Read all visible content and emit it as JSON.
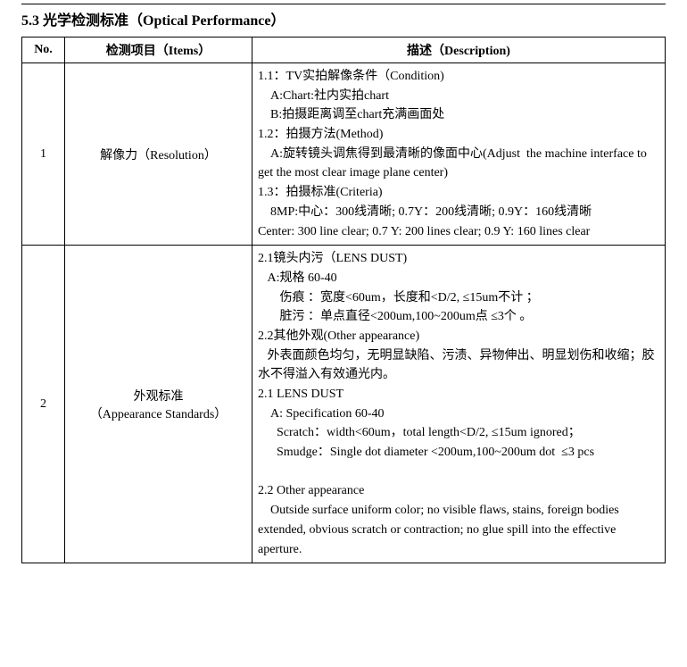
{
  "section": {
    "title": "5.3 光学检测标准（Optical Performance）"
  },
  "headers": {
    "no": "No.",
    "items": "检测项目（Items）",
    "desc": "描述（Description)"
  },
  "rows": [
    {
      "no": "1",
      "item_cn": "解像力（Resolution）",
      "item_en": "",
      "description": "1.1：TV实拍解像条件（Condition)\n    A:Chart:社内实拍chart\n    B:拍摄距离调至chart充满画面处\n1.2：拍摄方法(Method)\n    A:旋转镜头调焦得到最清晰的像面中心(Adjust  the machine interface to get the most clear image plane center)\n1.3：拍摄标准(Criteria)\n    8MP:中心：300线清晰; 0.7Y：200线清晰; 0.9Y：160线清晰\nCenter: 300 line clear; 0.7 Y: 200 lines clear; 0.9 Y: 160 lines clear"
    },
    {
      "no": "2",
      "item_cn": "外观标准",
      "item_en": "（Appearance Standards）",
      "description": "2.1镜头内污（LENS DUST)\n   A:规格 60-40\n       伤痕 ：宽度<60um，长度和<D/2, ≤15um不计 ；\n       脏污 ：单点直径<200um,100~200um点 ≤3个 。\n2.2其他外观(Other appearance)\n   外表面颜色均匀，无明显缺陷、污渍、异物伸出、明显划伤和收缩；胶水不得溢入有效通光内。\n2.1 LENS DUST\n    A: Specification 60-40\n      Scratch：width<60um，total length<D/2, ≤15um ignored；\n      Smudge：Single dot diameter <200um,100~200um dot  ≤3 pcs\n\n2.2 Other appearance\n    Outside surface uniform color; no visible flaws, stains, foreign bodies extended, obvious scratch or contraction; no glue spill into the effective aperture."
    }
  ]
}
